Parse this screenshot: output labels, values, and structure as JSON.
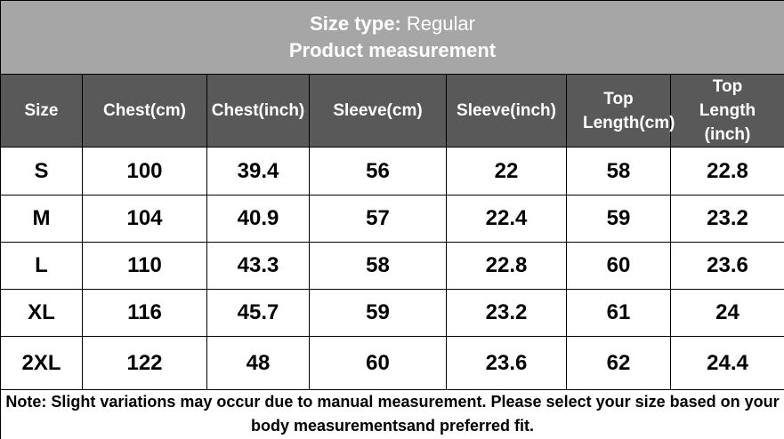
{
  "header": {
    "size_type_label": "Size type:",
    "size_type_value": "Regular",
    "subtitle": "Product measurement"
  },
  "table": {
    "columns": [
      "Size",
      "Chest(cm)",
      "Chest(inch)",
      "Sleeve(cm)",
      "Sleeve(inch)",
      "Top Length(cm)",
      "Top Length (inch)"
    ],
    "rows": [
      [
        "S",
        100,
        39.4,
        56,
        22,
        58,
        22.8
      ],
      [
        "M",
        104,
        40.9,
        57,
        22.4,
        59,
        23.2
      ],
      [
        "L",
        110,
        43.3,
        58,
        22.8,
        60,
        23.6
      ],
      [
        "XL",
        116,
        45.7,
        59,
        23.2,
        61,
        24
      ],
      [
        "2XL",
        122,
        48,
        60,
        23.6,
        62,
        24.4
      ]
    ]
  },
  "footer": {
    "note": "Note: Slight variations may occur due to manual measurement. Please select your size based on your body measurementsand preferred fit."
  }
}
